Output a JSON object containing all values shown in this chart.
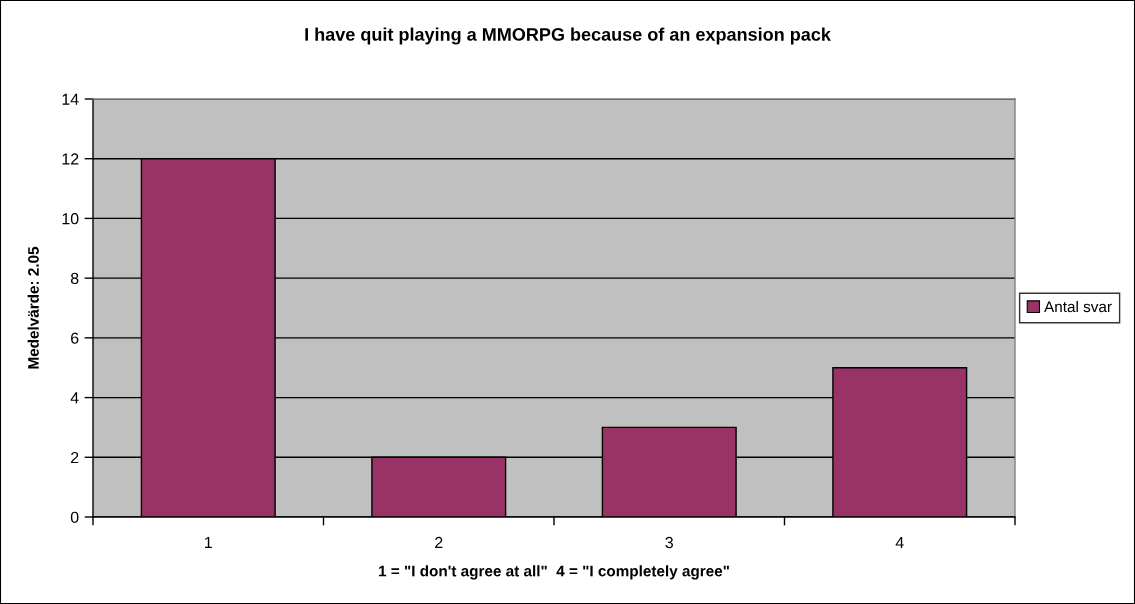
{
  "chart_data": {
    "type": "bar",
    "title": "I have quit playing a MMORPG because of an expansion pack",
    "xlabel": "1 = \"I don't agree at all\"  4 = \"I completely agree\"",
    "ylabel": "Medelvärde: 2.05",
    "categories": [
      "1",
      "2",
      "3",
      "4"
    ],
    "series": [
      {
        "name": "Antal svar",
        "color": "#993366",
        "values": [
          12,
          2,
          3,
          5
        ]
      }
    ],
    "ylim": [
      0,
      14
    ],
    "yticks": [
      0,
      2,
      4,
      6,
      8,
      10,
      12,
      14
    ],
    "grid": "y",
    "legend": "right"
  }
}
